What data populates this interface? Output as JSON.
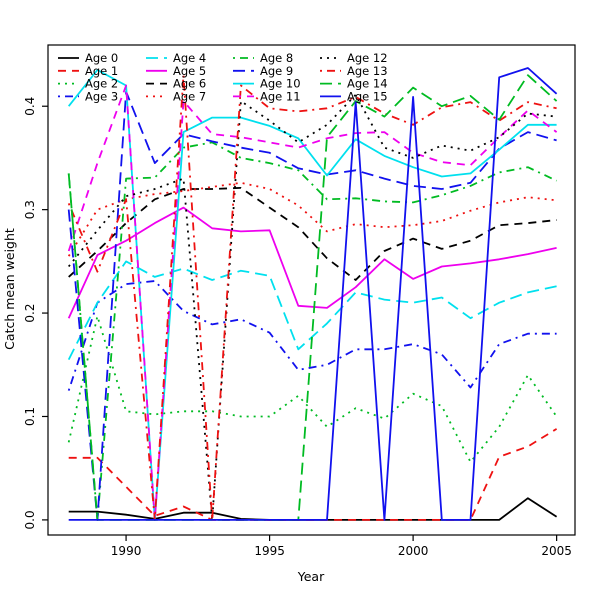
{
  "figure": {
    "background": "#ffffff",
    "border_color": "#000000"
  },
  "axes": {
    "xlabel": "Year",
    "ylabel": "Catch mean weight",
    "xticks": [
      1990,
      1995,
      2000,
      2005
    ],
    "yticks": [
      "0.0",
      "0.1",
      "0.2",
      "0.3",
      "0.4"
    ],
    "ytick_values": [
      0.0,
      0.1,
      0.2,
      0.3,
      0.4
    ],
    "xlim": [
      1987.28,
      2005.64
    ],
    "ylim": [
      -0.0146,
      0.4592
    ],
    "grid": false,
    "tick_color": "#000000",
    "label_color": "#000000"
  },
  "legend": {
    "position": "top-left",
    "ncol": 4,
    "entries": [
      "Age 0",
      "Age 1",
      "Age 2",
      "Age 3",
      "Age 4",
      "Age 5",
      "Age 6",
      "Age 7",
      "Age 8",
      "Age 9",
      "Age 10",
      "Age 11",
      "Age 12",
      "Age 13",
      "Age 14",
      "Age 15"
    ]
  },
  "palette": {
    "black": "#000000",
    "red": "#ee1111",
    "green": "#00bb22",
    "blue": "#1111ee",
    "cyan": "#00e0ee",
    "magenta": "#ee00ee"
  },
  "chart_data": {
    "type": "line",
    "title": "",
    "xlabel": "Year",
    "ylabel": "Catch mean weight",
    "x": [
      1988,
      1989,
      1990,
      1991,
      1992,
      1993,
      1994,
      1995,
      1996,
      1997,
      1998,
      1999,
      2000,
      2001,
      2002,
      2003,
      2004,
      2005
    ],
    "series": [
      {
        "name": "Age 0",
        "color": "black",
        "linetype": "solid",
        "values": [
          0.008,
          0.008,
          0.005,
          0.001,
          0.007,
          0.007,
          0.001,
          0,
          0,
          0,
          0,
          0,
          0,
          0,
          0,
          0,
          0.021,
          0.003
        ]
      },
      {
        "name": "Age 1",
        "color": "red",
        "linetype": "dashed",
        "values": [
          0.06,
          0.06,
          0.032,
          0.004,
          0.013,
          0,
          0,
          0,
          0,
          0,
          0,
          0,
          0,
          0,
          0,
          0.061,
          0.071,
          0.088
        ]
      },
      {
        "name": "Age 2",
        "color": "green",
        "linetype": "dotted",
        "values": [
          0.075,
          0.197,
          0.105,
          0.102,
          0.105,
          0.105,
          0.1,
          0.1,
          0.12,
          0.09,
          0.108,
          0.098,
          0.122,
          0.11,
          0.056,
          0.09,
          0.14,
          0.1
        ]
      },
      {
        "name": "Age 3",
        "color": "blue",
        "linetype": "dotdash",
        "values": [
          0.125,
          0.21,
          0.228,
          0.231,
          0.202,
          0.189,
          0.194,
          0.181,
          0.145,
          0.15,
          0.165,
          0.165,
          0.17,
          0.16,
          0.128,
          0.17,
          0.18,
          0.18
        ]
      },
      {
        "name": "Age 4",
        "color": "cyan",
        "linetype": "longdash",
        "values": [
          0.155,
          0.21,
          0.25,
          0.235,
          0.243,
          0.232,
          0.241,
          0.236,
          0.165,
          0.19,
          0.22,
          0.213,
          0.21,
          0.215,
          0.195,
          0.21,
          0.22,
          0.226
        ]
      },
      {
        "name": "Age 5",
        "color": "magenta",
        "linetype": "solid",
        "values": [
          0.195,
          0.256,
          0.27,
          0.287,
          0.302,
          0.282,
          0.279,
          0.28,
          0.207,
          0.205,
          0.225,
          0.252,
          0.233,
          0.245,
          0.248,
          0.252,
          0.257,
          0.263
        ]
      },
      {
        "name": "Age 6",
        "color": "black",
        "linetype": "dashed",
        "values": [
          0.235,
          0.26,
          0.287,
          0.31,
          0.32,
          0.32,
          0.321,
          0.302,
          0.283,
          0.253,
          0.232,
          0.26,
          0.272,
          0.262,
          0.27,
          0.285,
          0.287,
          0.29
        ]
      },
      {
        "name": "Age 7",
        "color": "red",
        "linetype": "dotted",
        "values": [
          0.255,
          0.3,
          0.31,
          0.315,
          0.318,
          0.322,
          0.326,
          0.32,
          0.304,
          0.279,
          0.286,
          0.283,
          0.285,
          0.289,
          0.299,
          0.307,
          0.312,
          0.309
        ]
      },
      {
        "name": "Age 8",
        "color": "green",
        "linetype": "dotdash",
        "values": [
          0.335,
          0,
          0.33,
          0.331,
          0.36,
          0.365,
          0.35,
          0.345,
          0.338,
          0.31,
          0.311,
          0.308,
          0.307,
          0.314,
          0.323,
          0.336,
          0.341,
          0.328
        ]
      },
      {
        "name": "Age 9",
        "color": "blue",
        "linetype": "longdash",
        "values": [
          0.3,
          0,
          0.414,
          0.345,
          0.373,
          0.366,
          0.36,
          0.355,
          0.34,
          0.334,
          0.338,
          0.33,
          0.323,
          0.32,
          0.326,
          0.359,
          0.375,
          0.367
        ]
      },
      {
        "name": "Age 10",
        "color": "cyan",
        "linetype": "solid",
        "values": [
          0.4,
          0.435,
          0.42,
          0,
          0.375,
          0.389,
          0.389,
          0.381,
          0.369,
          0.333,
          0.368,
          0.352,
          0.341,
          0.332,
          0.335,
          0.358,
          0.382,
          0.382
        ]
      },
      {
        "name": "Age 11",
        "color": "magenta",
        "linetype": "dashed",
        "values": [
          0.26,
          0.345,
          0.42,
          0,
          0.405,
          0.373,
          0.37,
          0.365,
          0.36,
          0.369,
          0.374,
          0.375,
          0.355,
          0.346,
          0.343,
          0.37,
          0.396,
          0.375
        ]
      },
      {
        "name": "Age 12",
        "color": "black",
        "linetype": "dotted",
        "values": [
          0.245,
          0.28,
          0.313,
          0.32,
          0.33,
          0,
          0.405,
          0.386,
          0.365,
          0.382,
          0.411,
          0.36,
          0.35,
          0.362,
          0.357,
          0.37,
          0.393,
          0.39
        ]
      },
      {
        "name": "Age 13",
        "color": "red",
        "linetype": "dotdash",
        "values": [
          0.306,
          0.24,
          0.31,
          0,
          0.43,
          0,
          0.42,
          0.398,
          0.395,
          0.398,
          0.409,
          0.393,
          0.382,
          0.399,
          0.404,
          0.386,
          0.404,
          0.398
        ]
      },
      {
        "name": "Age 14",
        "color": "green",
        "linetype": "longdash",
        "values": [
          0.335,
          0,
          0,
          0,
          0,
          0,
          0,
          0,
          0,
          0.37,
          0.405,
          0.39,
          0.418,
          0.4,
          0.41,
          0.387,
          0.43,
          0.405
        ]
      },
      {
        "name": "Age 15",
        "color": "blue",
        "linetype": "solid",
        "values": [
          0,
          0,
          0,
          0,
          0,
          0,
          0,
          0,
          0,
          0,
          0.404,
          0,
          0.409,
          0,
          0,
          0.428,
          0.437,
          0.412
        ]
      }
    ]
  }
}
